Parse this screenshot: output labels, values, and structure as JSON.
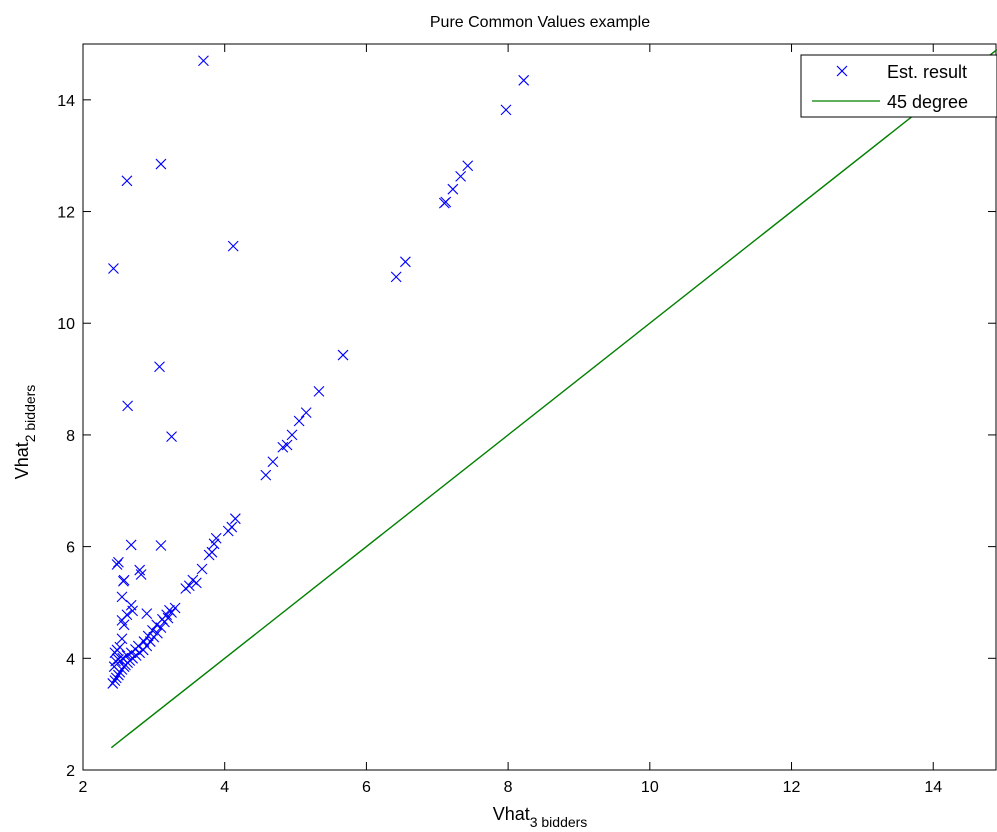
{
  "chart_data": {
    "type": "scatter",
    "title": "Pure Common Values example",
    "xlabel": {
      "base": "Vhat",
      "subscript": "3 bidders"
    },
    "ylabel": {
      "base": "Vhat",
      "subscript": "2 bidders"
    },
    "xlim": [
      2,
      14.9
    ],
    "ylim": [
      2,
      15
    ],
    "xticks": [
      2,
      4,
      6,
      8,
      10,
      12,
      14
    ],
    "yticks": [
      2,
      4,
      6,
      8,
      10,
      12,
      14
    ],
    "grid": false,
    "legend": {
      "placement": "top-right"
    },
    "series": [
      {
        "name": "Est. result",
        "marker": "x",
        "color": "#0000ff",
        "points": [
          [
            2.43,
            10.98
          ],
          [
            2.62,
            12.55
          ],
          [
            3.1,
            12.85
          ],
          [
            3.7,
            14.7
          ],
          [
            4.12,
            11.38
          ],
          [
            3.08,
            9.22
          ],
          [
            2.63,
            8.52
          ],
          [
            3.25,
            7.97
          ],
          [
            2.68,
            6.03
          ],
          [
            3.1,
            6.02
          ],
          [
            2.5,
            5.72
          ],
          [
            2.48,
            5.68
          ],
          [
            2.8,
            5.58
          ],
          [
            2.82,
            5.5
          ],
          [
            2.58,
            5.4
          ],
          [
            2.57,
            5.38
          ],
          [
            2.55,
            5.1
          ],
          [
            2.7,
            4.85
          ],
          [
            2.62,
            4.78
          ],
          [
            2.68,
            4.95
          ],
          [
            2.55,
            4.68
          ],
          [
            2.58,
            4.6
          ],
          [
            2.9,
            4.8
          ],
          [
            2.45,
            4.1
          ],
          [
            2.48,
            4.15
          ],
          [
            2.52,
            4.2
          ],
          [
            2.55,
            4.35
          ],
          [
            2.42,
            3.55
          ],
          [
            2.45,
            3.6
          ],
          [
            2.47,
            3.65
          ],
          [
            2.5,
            3.7
          ],
          [
            2.52,
            3.75
          ],
          [
            2.55,
            3.8
          ],
          [
            2.58,
            3.85
          ],
          [
            2.6,
            3.88
          ],
          [
            2.63,
            3.92
          ],
          [
            2.66,
            3.96
          ],
          [
            2.7,
            4.0
          ],
          [
            2.75,
            4.05
          ],
          [
            2.8,
            4.1
          ],
          [
            2.85,
            4.15
          ],
          [
            2.9,
            4.22
          ],
          [
            2.95,
            4.3
          ],
          [
            3.0,
            4.38
          ],
          [
            3.05,
            4.45
          ],
          [
            3.1,
            4.55
          ],
          [
            3.15,
            4.65
          ],
          [
            3.2,
            4.72
          ],
          [
            3.25,
            4.82
          ],
          [
            3.3,
            4.9
          ],
          [
            2.44,
            3.85
          ],
          [
            2.46,
            3.95
          ],
          [
            2.5,
            3.98
          ],
          [
            2.56,
            4.0
          ],
          [
            2.62,
            4.05
          ],
          [
            2.68,
            4.1
          ],
          [
            2.74,
            4.16
          ],
          [
            2.78,
            4.22
          ],
          [
            2.86,
            4.3
          ],
          [
            2.92,
            4.4
          ],
          [
            2.98,
            4.5
          ],
          [
            3.04,
            4.6
          ],
          [
            3.12,
            4.7
          ],
          [
            3.18,
            4.78
          ],
          [
            3.22,
            4.86
          ],
          [
            3.45,
            5.25
          ],
          [
            3.5,
            5.3
          ],
          [
            3.55,
            5.4
          ],
          [
            3.6,
            5.35
          ],
          [
            3.68,
            5.6
          ],
          [
            3.78,
            5.85
          ],
          [
            3.82,
            5.9
          ],
          [
            3.85,
            6.05
          ],
          [
            3.88,
            6.15
          ],
          [
            4.05,
            6.28
          ],
          [
            4.1,
            6.35
          ],
          [
            4.15,
            6.5
          ],
          [
            4.58,
            7.28
          ],
          [
            4.68,
            7.52
          ],
          [
            4.82,
            7.78
          ],
          [
            4.88,
            7.82
          ],
          [
            4.95,
            8.0
          ],
          [
            5.05,
            8.25
          ],
          [
            5.15,
            8.4
          ],
          [
            5.33,
            8.78
          ],
          [
            5.67,
            9.43
          ],
          [
            6.42,
            10.83
          ],
          [
            6.55,
            11.1
          ],
          [
            7.1,
            12.15
          ],
          [
            7.12,
            12.17
          ],
          [
            7.22,
            12.4
          ],
          [
            7.33,
            12.63
          ],
          [
            7.43,
            12.82
          ],
          [
            7.97,
            13.82
          ],
          [
            8.22,
            14.35
          ]
        ]
      },
      {
        "name": "45 degree",
        "type": "line",
        "color": "#008000",
        "x": [
          2.4,
          14.9
        ],
        "y": [
          2.4,
          14.9
        ]
      }
    ]
  }
}
